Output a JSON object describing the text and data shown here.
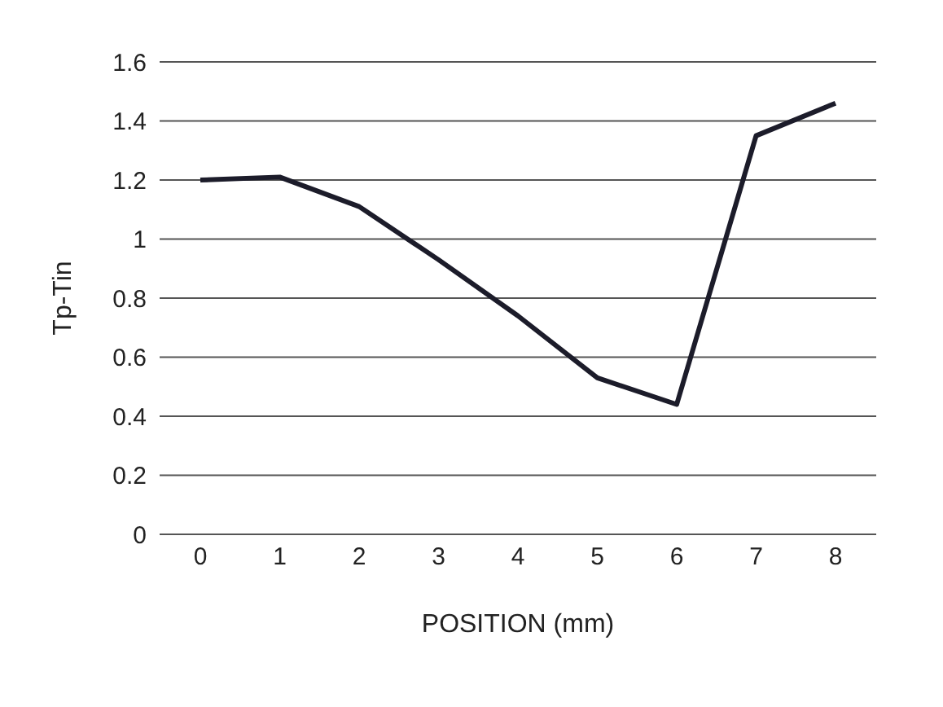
{
  "chart_data": {
    "type": "line",
    "xlabel": "POSITION (mm)",
    "ylabel": "Tp-Tin",
    "categories": [
      "0",
      "1",
      "2",
      "3",
      "4",
      "5",
      "6",
      "7",
      "8"
    ],
    "series": [
      {
        "color": "#1c1c2a",
        "values": [
          1.2,
          1.21,
          1.11,
          0.93,
          0.74,
          0.53,
          0.44,
          1.35,
          1.46
        ]
      }
    ],
    "ylim": [
      0,
      1.6
    ],
    "yticks": [
      0,
      0.2,
      0.4,
      0.6,
      0.8,
      1,
      1.2,
      1.4,
      1.6
    ],
    "grid": "y",
    "marker": "none",
    "line_style": "solid"
  }
}
